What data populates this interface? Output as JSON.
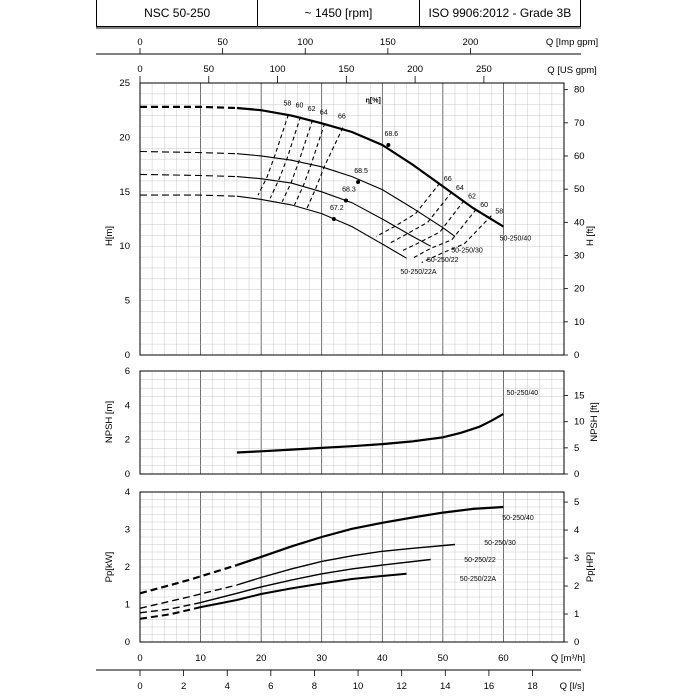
{
  "header": {
    "model": "NSC 50-250",
    "speed": "~ 1450 [rpm]",
    "standard": "ISO 9906:2012 - Grade 3B"
  },
  "chart_data": [
    {
      "id": "head",
      "type": "line",
      "ylabel": "H[m]",
      "ylabel_right": "H [ft]",
      "ylim": [
        0,
        25
      ],
      "ylim_right": [
        0,
        82
      ],
      "yticks": [
        0,
        5,
        10,
        15,
        20,
        25
      ],
      "yticks_right": [
        0,
        10,
        20,
        30,
        40,
        50,
        60,
        70,
        80
      ],
      "top_axis_1": {
        "label": "Q [Imp gpm]",
        "ticks": [
          0,
          50,
          100,
          150,
          200
        ]
      },
      "top_axis_2": {
        "label": "Q [US gpm]",
        "ticks": [
          0,
          50,
          100,
          150,
          200,
          250
        ]
      },
      "efficiency_label": "η[%]",
      "series": [
        {
          "name": "50-250/40",
          "dashed_to": 16,
          "points": [
            [
              0,
              22.8
            ],
            [
              10,
              22.8
            ],
            [
              16,
              22.7
            ],
            [
              20,
              22.5
            ],
            [
              25,
              22.0
            ],
            [
              30,
              21.3
            ],
            [
              35,
              20.5
            ],
            [
              40,
              19.3
            ],
            [
              45,
              17.5
            ],
            [
              50,
              15.5
            ],
            [
              55,
              13.5
            ],
            [
              60,
              11.8
            ]
          ]
        },
        {
          "name": "50-250/30",
          "dashed_to": 16,
          "points": [
            [
              0,
              18.7
            ],
            [
              10,
              18.6
            ],
            [
              16,
              18.5
            ],
            [
              20,
              18.3
            ],
            [
              25,
              17.9
            ],
            [
              30,
              17.3
            ],
            [
              35,
              16.4
            ],
            [
              40,
              15.2
            ],
            [
              45,
              13.5
            ],
            [
              50,
              11.7
            ],
            [
              52,
              10.9
            ]
          ]
        },
        {
          "name": "50-250/22",
          "dashed_to": 16,
          "points": [
            [
              0,
              16.6
            ],
            [
              10,
              16.5
            ],
            [
              16,
              16.4
            ],
            [
              20,
              16.2
            ],
            [
              25,
              15.8
            ],
            [
              30,
              15.0
            ],
            [
              35,
              14.0
            ],
            [
              40,
              12.5
            ],
            [
              45,
              10.9
            ],
            [
              48,
              10.0
            ]
          ]
        },
        {
          "name": "50-250/22A",
          "dashed_to": 16,
          "points": [
            [
              0,
              14.7
            ],
            [
              10,
              14.7
            ],
            [
              16,
              14.6
            ],
            [
              20,
              14.3
            ],
            [
              25,
              13.8
            ],
            [
              30,
              13.0
            ],
            [
              35,
              11.8
            ],
            [
              40,
              10.2
            ],
            [
              44,
              8.9
            ]
          ]
        }
      ],
      "bep_points": [
        {
          "label": "68.6",
          "x": 41,
          "y": 19.3
        },
        {
          "label": "68.5",
          "x": 36,
          "y": 15.9
        },
        {
          "label": "68.3",
          "x": 34,
          "y": 14.2
        },
        {
          "label": "67.2",
          "x": 32,
          "y": 12.5
        }
      ],
      "iso_efficiency_left": [
        {
          "label": "58",
          "points": [
            [
              24.5,
              22.1
            ],
            [
              22.3,
              18.4
            ],
            [
              21,
              16.4
            ],
            [
              19.5,
              14.7
            ]
          ]
        },
        {
          "label": "60",
          "points": [
            [
              26.5,
              21.9
            ],
            [
              24.3,
              18.1
            ],
            [
              23,
              16.2
            ],
            [
              21.5,
              14.4
            ]
          ]
        },
        {
          "label": "62",
          "points": [
            [
              28.5,
              21.6
            ],
            [
              26.3,
              17.9
            ],
            [
              25,
              15.9
            ],
            [
              23.5,
              14.1
            ]
          ]
        },
        {
          "label": "64",
          "points": [
            [
              30.5,
              21.3
            ],
            [
              28.3,
              17.6
            ],
            [
              27,
              15.6
            ],
            [
              25.5,
              13.8
            ]
          ]
        },
        {
          "label": "66",
          "points": [
            [
              33.5,
              20.9
            ],
            [
              30.5,
              17.4
            ],
            [
              29,
              15.3
            ],
            [
              27.5,
              13.4
            ]
          ]
        }
      ],
      "iso_efficiency_right": [
        {
          "label": "66",
          "points": [
            [
              49.5,
              15.8
            ],
            [
              45.5,
              13.0
            ],
            [
              42,
              11.8
            ],
            [
              39,
              10.9
            ]
          ]
        },
        {
          "label": "64",
          "points": [
            [
              51.5,
              15.0
            ],
            [
              47.5,
              12.2
            ],
            [
              44,
              11.1
            ],
            [
              41,
              10.2
            ]
          ]
        },
        {
          "label": "62",
          "points": [
            [
              53.5,
              14.2
            ],
            [
              49.5,
              11.3
            ],
            [
              46,
              10.3
            ],
            [
              43,
              9.5
            ]
          ]
        },
        {
          "label": "60",
          "points": [
            [
              55.5,
              13.4
            ],
            [
              51.5,
              10.6
            ],
            [
              48,
              9.8
            ],
            [
              45,
              8.9
            ]
          ]
        },
        {
          "label": "58",
          "points": [
            [
              58,
              12.8
            ],
            [
              53.5,
              10.2
            ],
            [
              50,
              9.4
            ],
            [
              46.5,
              8.5
            ]
          ]
        }
      ]
    },
    {
      "id": "npsh",
      "type": "line",
      "ylabel": "NPSH [m]",
      "ylabel_right": "NPSH [ft]",
      "ylim": [
        0,
        6
      ],
      "ylim_right": [
        0,
        19.7
      ],
      "yticks": [
        0,
        2,
        4,
        6
      ],
      "yticks_right": [
        0,
        5,
        10,
        15
      ],
      "series": [
        {
          "name": "50-250/40",
          "points": [
            [
              16,
              1.25
            ],
            [
              20,
              1.32
            ],
            [
              25,
              1.42
            ],
            [
              30,
              1.52
            ],
            [
              35,
              1.62
            ],
            [
              40,
              1.74
            ],
            [
              45,
              1.9
            ],
            [
              50,
              2.14
            ],
            [
              53,
              2.4
            ],
            [
              56,
              2.75
            ],
            [
              58,
              3.1
            ],
            [
              60,
              3.5
            ]
          ]
        }
      ]
    },
    {
      "id": "power",
      "type": "line",
      "ylabel": "Pp[kW]",
      "ylabel_right": "Pp[HP]",
      "ylim": [
        0,
        4
      ],
      "ylim_right": [
        0,
        5.36
      ],
      "yticks": [
        0,
        1,
        2,
        3,
        4
      ],
      "yticks_right": [
        0,
        1,
        2,
        3,
        4,
        5
      ],
      "xlabel": "Q [m³/h]",
      "xlabel_2": "Q [l/s]",
      "xticks": [
        0,
        10,
        20,
        30,
        40,
        50,
        60
      ],
      "xticks_2": [
        0,
        2,
        4,
        6,
        8,
        10,
        12,
        14,
        16,
        18
      ],
      "series": [
        {
          "name": "50-250/40",
          "dashed_to": 16,
          "points": [
            [
              0,
              1.3
            ],
            [
              8,
              1.65
            ],
            [
              16,
              2.05
            ],
            [
              20,
              2.27
            ],
            [
              25,
              2.55
            ],
            [
              30,
              2.8
            ],
            [
              35,
              3.02
            ],
            [
              40,
              3.18
            ],
            [
              45,
              3.32
            ],
            [
              50,
              3.45
            ],
            [
              55,
              3.55
            ],
            [
              60,
              3.6
            ]
          ]
        },
        {
          "name": "50-250/30",
          "dashed_to": 16,
          "points": [
            [
              0,
              0.9
            ],
            [
              8,
              1.2
            ],
            [
              16,
              1.52
            ],
            [
              20,
              1.72
            ],
            [
              25,
              1.95
            ],
            [
              30,
              2.15
            ],
            [
              35,
              2.3
            ],
            [
              40,
              2.42
            ],
            [
              45,
              2.5
            ],
            [
              52,
              2.6
            ]
          ]
        },
        {
          "name": "50-250/22",
          "dashed_to": 10,
          "points": [
            [
              0,
              0.78
            ],
            [
              5,
              0.88
            ],
            [
              10,
              1.05
            ],
            [
              16,
              1.3
            ],
            [
              20,
              1.47
            ],
            [
              25,
              1.65
            ],
            [
              30,
              1.82
            ],
            [
              35,
              1.95
            ],
            [
              40,
              2.05
            ],
            [
              48,
              2.2
            ]
          ]
        },
        {
          "name": "50-250/22A",
          "dashed_to": 10,
          "points": [
            [
              0,
              0.62
            ],
            [
              5,
              0.74
            ],
            [
              10,
              0.93
            ],
            [
              16,
              1.12
            ],
            [
              20,
              1.28
            ],
            [
              25,
              1.43
            ],
            [
              30,
              1.56
            ],
            [
              35,
              1.68
            ],
            [
              40,
              1.76
            ],
            [
              44,
              1.82
            ]
          ]
        }
      ]
    }
  ]
}
